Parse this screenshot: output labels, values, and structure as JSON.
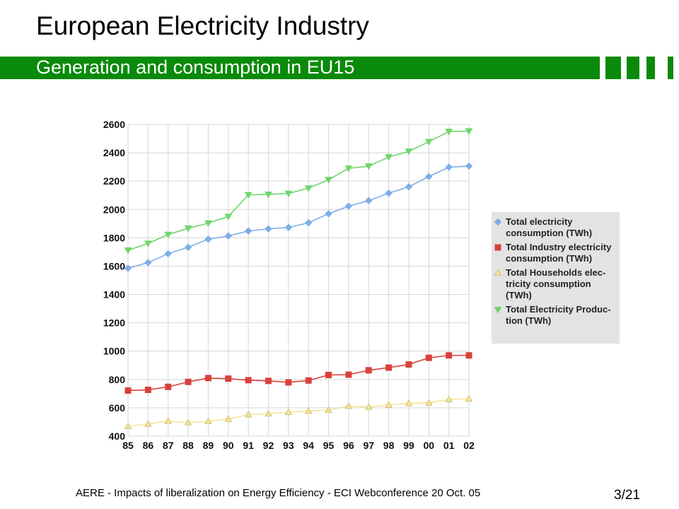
{
  "slide": {
    "title": "European Electricity Industry",
    "subtitle": "Generation and consumption in EU15",
    "footer": "AERE - Impacts of liberalization on Energy Efficiency - ECI Webconference 20 Oct. 05",
    "page": "3/21"
  },
  "colors": {
    "brand_green": "#0a8a0a",
    "total_consumption": "#7eaee8",
    "industry": "#d9413b",
    "households": "#f3e59a",
    "production": "#6fd66c"
  },
  "chart_data": {
    "type": "line",
    "title": "",
    "xlabel": "",
    "ylabel": "",
    "categories": [
      "85",
      "86",
      "87",
      "88",
      "89",
      "90",
      "91",
      "92",
      "93",
      "94",
      "95",
      "96",
      "97",
      "98",
      "99",
      "00",
      "01",
      "02"
    ],
    "ylim": [
      400,
      2600
    ],
    "yticks": [
      400,
      600,
      800,
      1000,
      1200,
      1400,
      1600,
      1800,
      2000,
      2200,
      2400,
      2600
    ],
    "grid": true,
    "legend_position": "right",
    "series": [
      {
        "name": "Total electricity consumption (TWh)",
        "legend_label": "Total electricity\nconsumption (TWh)",
        "marker": "diamond",
        "color": "#7eaee8",
        "values": [
          1585,
          1625,
          1688,
          1733,
          1790,
          1813,
          1848,
          1863,
          1873,
          1906,
          1970,
          2023,
          2062,
          2115,
          2160,
          2232,
          2298,
          2306
        ]
      },
      {
        "name": "Total Industry electricity consumption (TWh)",
        "legend_label": "Total Industry electricity\nconsumption (TWh)",
        "marker": "square",
        "color": "#d9413b",
        "values": [
          722,
          727,
          748,
          783,
          810,
          806,
          795,
          790,
          780,
          793,
          832,
          834,
          865,
          884,
          906,
          953,
          970,
          970
        ]
      },
      {
        "name": "Total Households electricity consumption (TWh)",
        "legend_label": "Total Households elec-\ntricity consumption\n(TWh)",
        "marker": "triangle-up",
        "color": "#f3e59a",
        "values": [
          470,
          486,
          507,
          496,
          505,
          521,
          552,
          559,
          570,
          578,
          585,
          612,
          606,
          620,
          632,
          636,
          659,
          664
        ]
      },
      {
        "name": "Total Electricity Production (TWh)",
        "legend_label": "Total Electricity Produc-\ntion (TWh)",
        "marker": "triangle-down",
        "color": "#6fd66c",
        "values": [
          1712,
          1760,
          1823,
          1867,
          1903,
          1950,
          2103,
          2106,
          2113,
          2150,
          2210,
          2290,
          2305,
          2370,
          2410,
          2478,
          2550,
          2553
        ]
      }
    ]
  }
}
